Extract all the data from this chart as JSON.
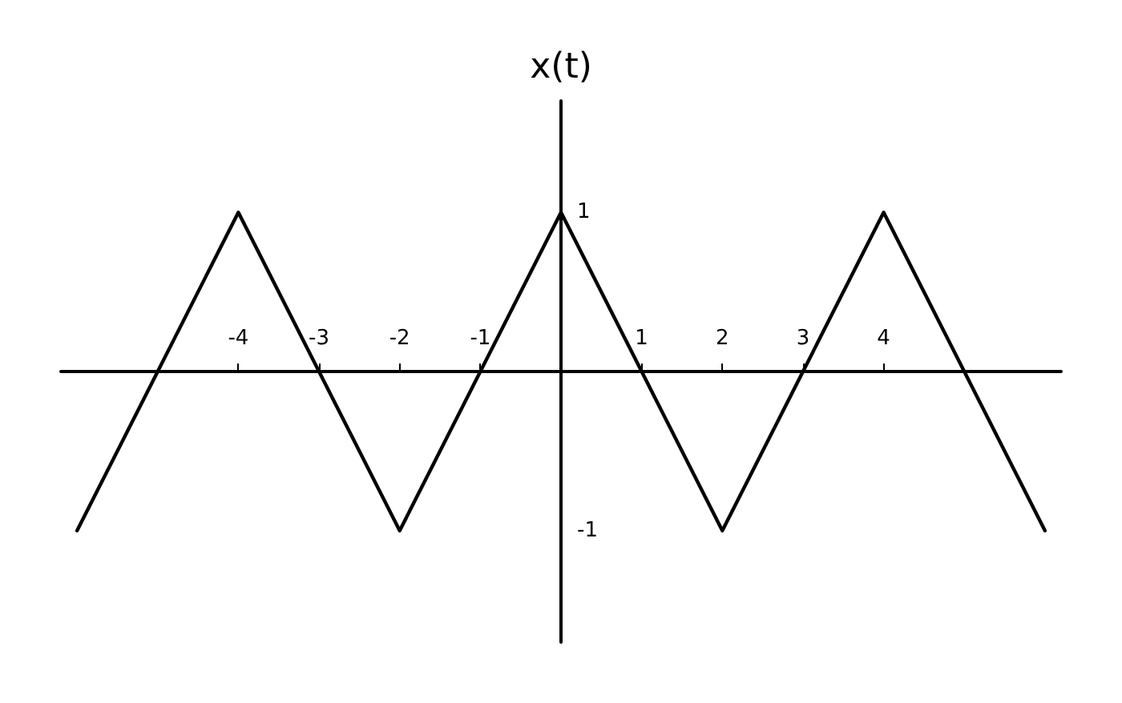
{
  "chart_data": {
    "type": "line",
    "ylabel": "x(t)",
    "x": [
      -6,
      -4,
      -2,
      0,
      2,
      4,
      6
    ],
    "series": [
      {
        "color": "#000000",
        "values": [
          -1,
          1,
          -1,
          1,
          -1,
          1,
          -1
        ]
      }
    ],
    "xlim": [
      -6.2,
      6.2
    ],
    "ylim": [
      -1.7,
      1.7
    ],
    "xticks": [
      -4,
      -3,
      -2,
      -1,
      1,
      2,
      3,
      4
    ],
    "yticks": [
      -1,
      1
    ],
    "grid": false,
    "marker": "none",
    "line_style": "solid"
  }
}
